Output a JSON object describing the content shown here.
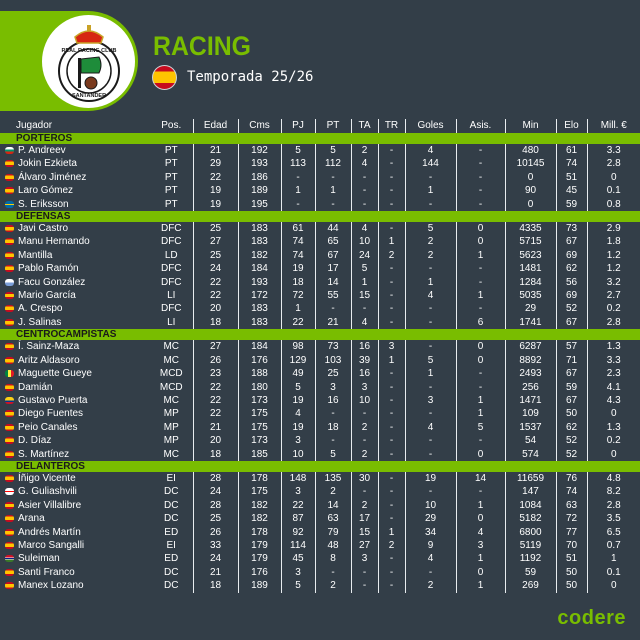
{
  "header": {
    "team": "RACING",
    "season": "Temporada 25/26",
    "crest_icon": "real-racing-club-santander-crest",
    "crest_text_top": "REAL RACING CLUB",
    "crest_text_bottom": "SANTANDER",
    "country_flag": "spain-flag-icon"
  },
  "colors": {
    "accent": "#79bd00",
    "background": "#333e48",
    "text": "#ffffff"
  },
  "table": {
    "columns": [
      "Jugador",
      "Pos.",
      "Edad",
      "Cms",
      "PJ",
      "PT",
      "TA",
      "TR",
      "Goles",
      "Asis.",
      "Min",
      "Elo",
      "Mill. €"
    ],
    "groups": [
      {
        "label": "PORTEROS",
        "rows": [
          {
            "flag": "bg",
            "name": "P. Andreev",
            "pos": "PT",
            "edad": "21",
            "cms": "192",
            "pj": "5",
            "pt": "5",
            "ta": "2",
            "tr": "-",
            "goles": "4",
            "asis": "-",
            "min": "480",
            "elo": "61",
            "mill": "3.3"
          },
          {
            "flag": "es",
            "name": "Jokin Ezkieta",
            "pos": "PT",
            "edad": "29",
            "cms": "193",
            "pj": "113",
            "pt": "112",
            "ta": "4",
            "tr": "-",
            "goles": "144",
            "asis": "-",
            "min": "10145",
            "elo": "74",
            "mill": "2.8"
          },
          {
            "flag": "es",
            "name": "Álvaro Jiménez",
            "pos": "PT",
            "edad": "22",
            "cms": "186",
            "pj": "-",
            "pt": "-",
            "ta": "-",
            "tr": "-",
            "goles": "-",
            "asis": "-",
            "min": "0",
            "elo": "51",
            "mill": "0"
          },
          {
            "flag": "es",
            "name": "Laro Gómez",
            "pos": "PT",
            "edad": "19",
            "cms": "189",
            "pj": "1",
            "pt": "1",
            "ta": "-",
            "tr": "-",
            "goles": "1",
            "asis": "-",
            "min": "90",
            "elo": "45",
            "mill": "0.1"
          },
          {
            "flag": "se",
            "name": "S. Eriksson",
            "pos": "PT",
            "edad": "19",
            "cms": "195",
            "pj": "-",
            "pt": "-",
            "ta": "-",
            "tr": "-",
            "goles": "-",
            "asis": "-",
            "min": "0",
            "elo": "59",
            "mill": "0.8"
          }
        ]
      },
      {
        "label": "DEFENSAS",
        "rows": [
          {
            "flag": "es",
            "name": "Javi Castro",
            "pos": "DFC",
            "edad": "25",
            "cms": "183",
            "pj": "61",
            "pt": "44",
            "ta": "4",
            "tr": "-",
            "goles": "5",
            "asis": "0",
            "min": "4335",
            "elo": "73",
            "mill": "2.9"
          },
          {
            "flag": "es",
            "name": "Manu Hernando",
            "pos": "DFC",
            "edad": "27",
            "cms": "183",
            "pj": "74",
            "pt": "65",
            "ta": "10",
            "tr": "1",
            "goles": "2",
            "asis": "0",
            "min": "5715",
            "elo": "67",
            "mill": "1.8"
          },
          {
            "flag": "es",
            "name": "Mantilla",
            "pos": "LD",
            "edad": "25",
            "cms": "182",
            "pj": "74",
            "pt": "67",
            "ta": "24",
            "tr": "2",
            "goles": "2",
            "asis": "1",
            "min": "5623",
            "elo": "69",
            "mill": "1.2"
          },
          {
            "flag": "es",
            "name": "Pablo Ramón",
            "pos": "DFC",
            "edad": "24",
            "cms": "184",
            "pj": "19",
            "pt": "17",
            "ta": "5",
            "tr": "-",
            "goles": "-",
            "asis": "-",
            "min": "1481",
            "elo": "62",
            "mill": "1.2"
          },
          {
            "flag": "uy",
            "name": "Facu González",
            "pos": "DFC",
            "edad": "22",
            "cms": "193",
            "pj": "18",
            "pt": "14",
            "ta": "1",
            "tr": "-",
            "goles": "1",
            "asis": "-",
            "min": "1284",
            "elo": "56",
            "mill": "3.2"
          },
          {
            "flag": "es",
            "name": "Mario García",
            "pos": "LI",
            "edad": "22",
            "cms": "172",
            "pj": "72",
            "pt": "55",
            "ta": "15",
            "tr": "-",
            "goles": "4",
            "asis": "1",
            "min": "5035",
            "elo": "69",
            "mill": "2.7"
          },
          {
            "flag": "es",
            "name": "A. Crespo",
            "pos": "DFC",
            "edad": "20",
            "cms": "183",
            "pj": "1",
            "pt": "-",
            "ta": "-",
            "tr": "-",
            "goles": "-",
            "asis": "-",
            "min": "29",
            "elo": "52",
            "mill": "0.2"
          },
          {
            "flag": "es",
            "name": "J. Salinas",
            "pos": "LI",
            "edad": "18",
            "cms": "183",
            "pj": "22",
            "pt": "21",
            "ta": "4",
            "tr": "-",
            "goles": "-",
            "asis": "6",
            "min": "1741",
            "elo": "67",
            "mill": "2.8"
          }
        ]
      },
      {
        "label": "CENTROCAMPISTAS",
        "rows": [
          {
            "flag": "es",
            "name": "Í. Sainz-Maza",
            "pos": "MC",
            "edad": "27",
            "cms": "184",
            "pj": "98",
            "pt": "73",
            "ta": "16",
            "tr": "3",
            "goles": "-",
            "asis": "0",
            "min": "6287",
            "elo": "57",
            "mill": "1.3"
          },
          {
            "flag": "es",
            "name": "Aritz Aldasoro",
            "pos": "MC",
            "edad": "26",
            "cms": "176",
            "pj": "129",
            "pt": "103",
            "ta": "39",
            "tr": "1",
            "goles": "5",
            "asis": "0",
            "min": "8892",
            "elo": "71",
            "mill": "3.3"
          },
          {
            "flag": "sn",
            "name": "Maguette Gueye",
            "pos": "MCD",
            "edad": "23",
            "cms": "188",
            "pj": "49",
            "pt": "25",
            "ta": "16",
            "tr": "-",
            "goles": "1",
            "asis": "-",
            "min": "2493",
            "elo": "67",
            "mill": "2.3"
          },
          {
            "flag": "es",
            "name": "Damián",
            "pos": "MCD",
            "edad": "22",
            "cms": "180",
            "pj": "5",
            "pt": "3",
            "ta": "3",
            "tr": "-",
            "goles": "-",
            "asis": "-",
            "min": "256",
            "elo": "59",
            "mill": "4.1"
          },
          {
            "flag": "co",
            "name": "Gustavo Puerta",
            "pos": "MC",
            "edad": "22",
            "cms": "173",
            "pj": "19",
            "pt": "16",
            "ta": "10",
            "tr": "-",
            "goles": "3",
            "asis": "1",
            "min": "1471",
            "elo": "67",
            "mill": "4.3"
          },
          {
            "flag": "es",
            "name": "Diego Fuentes",
            "pos": "MP",
            "edad": "22",
            "cms": "175",
            "pj": "4",
            "pt": "-",
            "ta": "-",
            "tr": "-",
            "goles": "-",
            "asis": "1",
            "min": "109",
            "elo": "50",
            "mill": "0"
          },
          {
            "flag": "es",
            "name": "Peio Canales",
            "pos": "MP",
            "edad": "21",
            "cms": "175",
            "pj": "19",
            "pt": "18",
            "ta": "2",
            "tr": "-",
            "goles": "4",
            "asis": "5",
            "min": "1537",
            "elo": "62",
            "mill": "1.3"
          },
          {
            "flag": "es",
            "name": "D. Díaz",
            "pos": "MP",
            "edad": "20",
            "cms": "173",
            "pj": "3",
            "pt": "-",
            "ta": "-",
            "tr": "-",
            "goles": "-",
            "asis": "-",
            "min": "54",
            "elo": "52",
            "mill": "0.2"
          },
          {
            "flag": "es",
            "name": "S. Martínez",
            "pos": "MC",
            "edad": "18",
            "cms": "185",
            "pj": "10",
            "pt": "5",
            "ta": "2",
            "tr": "-",
            "goles": "-",
            "asis": "0",
            "min": "574",
            "elo": "52",
            "mill": "0"
          }
        ]
      },
      {
        "label": "DELANTEROS",
        "rows": [
          {
            "flag": "es",
            "name": "Íñigo Vicente",
            "pos": "EI",
            "edad": "28",
            "cms": "178",
            "pj": "148",
            "pt": "135",
            "ta": "30",
            "tr": "-",
            "goles": "19",
            "asis": "14",
            "min": "11659",
            "elo": "76",
            "mill": "4.8"
          },
          {
            "flag": "ge",
            "name": "G. Guliashvili",
            "pos": "DC",
            "edad": "24",
            "cms": "175",
            "pj": "3",
            "pt": "2",
            "ta": "-",
            "tr": "-",
            "goles": "-",
            "asis": "-",
            "min": "147",
            "elo": "74",
            "mill": "8.2"
          },
          {
            "flag": "es",
            "name": "Asier Villalibre",
            "pos": "DC",
            "edad": "28",
            "cms": "182",
            "pj": "22",
            "pt": "14",
            "ta": "2",
            "tr": "-",
            "goles": "10",
            "asis": "1",
            "min": "1084",
            "elo": "63",
            "mill": "2.8"
          },
          {
            "flag": "es",
            "name": "Arana",
            "pos": "DC",
            "edad": "25",
            "cms": "182",
            "pj": "87",
            "pt": "63",
            "ta": "17",
            "tr": "-",
            "goles": "29",
            "asis": "0",
            "min": "5182",
            "elo": "72",
            "mill": "3.5"
          },
          {
            "flag": "es",
            "name": "Andrés Martín",
            "pos": "ED",
            "edad": "26",
            "cms": "178",
            "pj": "92",
            "pt": "79",
            "ta": "15",
            "tr": "1",
            "goles": "34",
            "asis": "4",
            "min": "6800",
            "elo": "77",
            "mill": "6.5"
          },
          {
            "flag": "es",
            "name": "Marco Sangalli",
            "pos": "EI",
            "edad": "33",
            "cms": "179",
            "pj": "114",
            "pt": "48",
            "ta": "27",
            "tr": "2",
            "goles": "9",
            "asis": "3",
            "min": "5119",
            "elo": "70",
            "mill": "0.7"
          },
          {
            "flag": "gm",
            "name": "Suleiman",
            "pos": "ED",
            "edad": "24",
            "cms": "179",
            "pj": "45",
            "pt": "8",
            "ta": "3",
            "tr": "-",
            "goles": "4",
            "asis": "1",
            "min": "1192",
            "elo": "51",
            "mill": "1"
          },
          {
            "flag": "es",
            "name": "Santi Franco",
            "pos": "DC",
            "edad": "21",
            "cms": "176",
            "pj": "3",
            "pt": "-",
            "ta": "-",
            "tr": "-",
            "goles": "-",
            "asis": "0",
            "min": "59",
            "elo": "50",
            "mill": "0.1"
          },
          {
            "flag": "es",
            "name": "Manex Lozano",
            "pos": "DC",
            "edad": "18",
            "cms": "189",
            "pj": "5",
            "pt": "2",
            "ta": "-",
            "tr": "-",
            "goles": "2",
            "asis": "1",
            "min": "269",
            "elo": "50",
            "mill": "0"
          }
        ]
      }
    ]
  },
  "flags": {
    "es": "linear-gradient(#c60b1e 0 25%, #ffc400 25% 75%, #c60b1e 75%)",
    "bg": "linear-gradient(#ffffff 0 33%, #00966e 33% 66%, #d62612 66%)",
    "se": "linear-gradient(#006aa7 0 40%, #fecc00 40% 60%, #006aa7 60%)",
    "uy": "linear-gradient(#ffffff 0 50%, #7b9ed8 50%)",
    "sn": "linear-gradient(90deg, #00853f 0 33%, #fdef42 33% 66%, #e31b23 66%)",
    "co": "linear-gradient(#fcd116 0 50%, #003893 50% 75%, #ce1126 75%)",
    "ge": "linear-gradient(#ffffff 0 40%, #ff0000 40% 60%, #ffffff 60%)",
    "gm": "linear-gradient(#ce1126 0 35%, #ffffff 35% 40%, #0c1c8c 40% 60%, #ffffff 60% 65%, #3a7728 65%)"
  },
  "footer": {
    "brand": "codere"
  }
}
